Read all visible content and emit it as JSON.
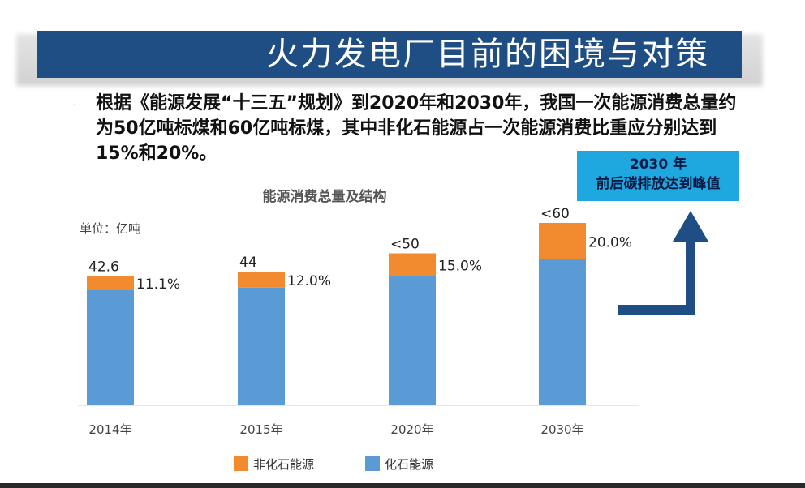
{
  "banner": {
    "title": "火力发电厂目前的困境与对策"
  },
  "intro_text": "根据《能源发展“十三五”规划》到2020年和2030年，我国一次能源消费总量约为50亿吨标煤和60亿吨标煤，其中非化石能源占一次能源消费比重应分别达到15%和20%。",
  "callout": {
    "line1": "2030 年",
    "line2": "前后碳排放达到峰值"
  },
  "colors": {
    "banner": "#1f4e85",
    "non_fossil": "#f28a30",
    "fossil": "#5b9bd5",
    "arrow": "#1f4e85",
    "callout": "#1fa8e0"
  },
  "icons": [
    "up-arrow-icon"
  ],
  "chart_data": {
    "type": "bar",
    "stacked": true,
    "title": "能源消费总量及结构",
    "unit_label": "单位：亿吨",
    "categories": [
      "2014年",
      "2015年",
      "2020年",
      "2030年"
    ],
    "total_labels": [
      "42.6",
      "44",
      "<50",
      "<60"
    ],
    "share_labels": [
      "11.1%",
      "12.0%",
      "15.0%",
      "20.0%"
    ],
    "totals": [
      42.6,
      44,
      50,
      60
    ],
    "series": [
      {
        "name": "化石能源",
        "values": [
          37.87,
          38.72,
          42.5,
          48.0
        ],
        "color": "#5b9bd5"
      },
      {
        "name": "非化石能源",
        "values": [
          4.73,
          5.28,
          7.5,
          12.0
        ],
        "color": "#f28a30"
      }
    ],
    "legend": {
      "position": "bottom",
      "items": [
        "非化石能源",
        "化石能源"
      ]
    },
    "ylim": [
      0,
      60
    ],
    "grid": false
  }
}
